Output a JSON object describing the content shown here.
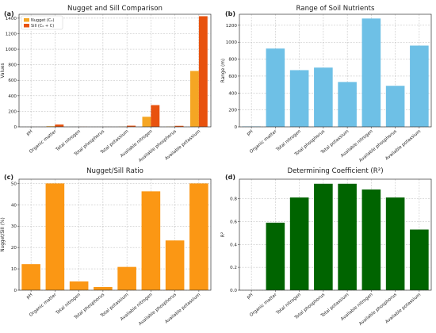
{
  "categories": [
    "pH",
    "Organic matter",
    "Total nitrogen",
    "Total phosphorus",
    "Total potassium",
    "Available nitrogen",
    "Available phosphorus",
    "Available potassium"
  ],
  "chart_data": [
    {
      "type": "bar",
      "panel": "(a)",
      "title": "Nugget and Sill Comparison",
      "ylabel": "Values",
      "xlabel": "",
      "ylim": [
        0,
        1450
      ],
      "yticks": [
        0,
        200,
        400,
        600,
        800,
        1000,
        1200,
        1400
      ],
      "grid": true,
      "legend_position": "top-left",
      "series": [
        {
          "name": "Nugget (C₀)",
          "color": "#f5a623",
          "values": [
            0.1,
            8,
            0.2,
            0.1,
            2,
            130,
            3,
            720
          ]
        },
        {
          "name": "Sill (C₀ + C)",
          "color": "#e8520e",
          "values": [
            0.3,
            30,
            1,
            0.5,
            15,
            280,
            13,
            1425
          ]
        }
      ]
    },
    {
      "type": "bar",
      "panel": "(b)",
      "title": "Range of Soil Nutrients",
      "ylabel": "Range (m)",
      "xlabel": "",
      "ylim": [
        0,
        1330
      ],
      "yticks": [
        0,
        200,
        400,
        600,
        800,
        1000,
        1200
      ],
      "grid": true,
      "series": [
        {
          "name": "",
          "color": "#6ec0e6",
          "values": [
            5,
            925,
            670,
            700,
            530,
            1280,
            485,
            960
          ]
        }
      ]
    },
    {
      "type": "bar",
      "panel": "(c)",
      "title": "Nugget/Sill Ratio",
      "ylabel": "Nugget/Sill (%)",
      "xlabel": "",
      "ylim": [
        0,
        52
      ],
      "yticks": [
        0,
        10,
        20,
        30,
        40,
        50
      ],
      "grid": true,
      "series": [
        {
          "name": "",
          "color": "#fb9714",
          "values": [
            12.2,
            50,
            4.1,
            1.5,
            10.9,
            46.3,
            23.3,
            50
          ]
        }
      ]
    },
    {
      "type": "bar",
      "panel": "(d)",
      "title": "Determining Coefficient (R²)",
      "ylabel": "R²",
      "xlabel": "",
      "ylim": [
        0,
        0.97
      ],
      "yticks": [
        "0.0",
        "0.2",
        "0.4",
        "0.6",
        "0.8"
      ],
      "grid": true,
      "series": [
        {
          "name": "",
          "color": "#006400",
          "values": [
            0,
            0.59,
            0.81,
            0.93,
            0.93,
            0.88,
            0.81,
            0.53
          ]
        }
      ]
    }
  ]
}
